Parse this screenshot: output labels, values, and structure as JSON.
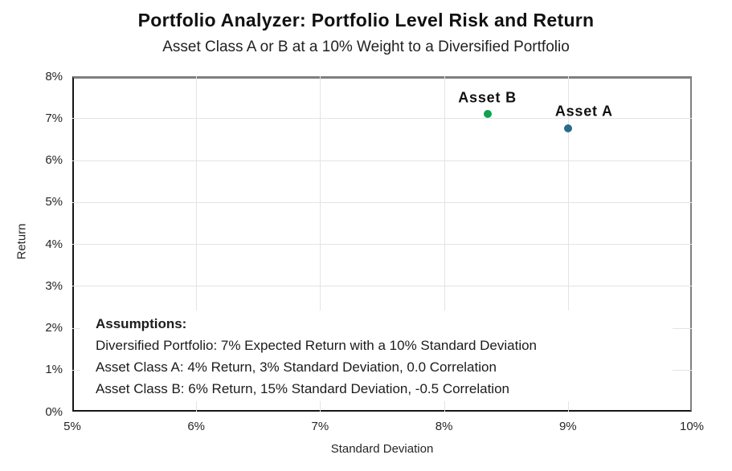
{
  "title": "Portfolio Analyzer: Portfolio Level Risk and Return",
  "subtitle": "Asset Class A or B at a 10% Weight to a Diversified Portfolio",
  "chart_data": {
    "type": "scatter",
    "title": "Portfolio Analyzer: Portfolio Level Risk and Return",
    "subtitle": "Asset Class A or B at a 10% Weight to a Diversified Portfolio",
    "xlabel": "Standard Deviation",
    "ylabel": "Return",
    "xlim": [
      5,
      10
    ],
    "ylim": [
      0,
      8
    ],
    "x_ticks": [
      {
        "value": 5,
        "label": "5%"
      },
      {
        "value": 6,
        "label": "6%"
      },
      {
        "value": 7,
        "label": "7%"
      },
      {
        "value": 8,
        "label": "8%"
      },
      {
        "value": 9,
        "label": "9%"
      },
      {
        "value": 10,
        "label": "10%"
      }
    ],
    "y_ticks": [
      {
        "value": 0,
        "label": "0%"
      },
      {
        "value": 1,
        "label": "1%"
      },
      {
        "value": 2,
        "label": "2%"
      },
      {
        "value": 3,
        "label": "3%"
      },
      {
        "value": 4,
        "label": "4%"
      },
      {
        "value": 5,
        "label": "5%"
      },
      {
        "value": 6,
        "label": "6%"
      },
      {
        "value": 7,
        "label": "7%"
      },
      {
        "value": 8,
        "label": "8%"
      }
    ],
    "grid": true,
    "legend_position": "none",
    "series": [
      {
        "name": "Asset B",
        "x": 8.35,
        "y": 7.1,
        "color": "#0fa24f",
        "label_dx": 0,
        "label_dy": -20
      },
      {
        "name": "Asset A",
        "x": 9.0,
        "y": 6.75,
        "color": "#2a6b8c",
        "label_dx": 20,
        "label_dy": -21
      }
    ],
    "annotation": {
      "heading": "Assumptions:",
      "lines": [
        "Diversified Portfolio: 7% Expected Return with a 10% Standard Deviation",
        "Asset Class A: 4% Return, 3% Standard Deviation, 0.0 Correlation",
        "Asset Class B: 6% Return, 15% Standard Deviation, -0.5 Correlation"
      ]
    },
    "colors": {
      "asset_a_point": "#2a6b8c",
      "asset_b_point": "#0fa24f",
      "gridline": "#e4e4e4",
      "plot_border_gray": "#7f7f7f",
      "axis_line": "#161616",
      "text": "#1a1a1a"
    }
  }
}
